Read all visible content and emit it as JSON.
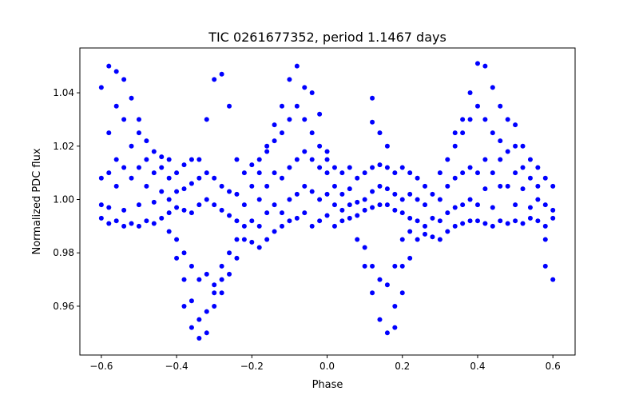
{
  "chart_data": {
    "type": "scatter",
    "title": "TIC 0261677352, period 1.1467 days",
    "xlabel": "Phase",
    "ylabel": "Normalized PDC flux",
    "xlim": [
      -0.657,
      0.659
    ],
    "ylim": [
      0.9417,
      1.0568
    ],
    "grid": false,
    "marker_color": "#0000ff",
    "x_ticks": [
      -0.6,
      -0.4,
      -0.2,
      0.0,
      0.2,
      0.4,
      0.6
    ],
    "x_tick_labels": [
      "−0.6",
      "−0.4",
      "−0.2",
      "0.0",
      "0.2",
      "0.4",
      "0.6"
    ],
    "y_ticks": [
      0.96,
      0.98,
      1.0,
      1.02,
      1.04
    ],
    "y_tick_labels": [
      "0.96",
      "0.98",
      "1.00",
      "1.02",
      "1.04"
    ],
    "columns": [
      {
        "x": -0.6,
        "y": [
          0.993,
          0.998,
          1.008,
          1.042
        ]
      },
      {
        "x": -0.58,
        "y": [
          0.991,
          0.997,
          1.01,
          1.025,
          1.05
        ]
      },
      {
        "x": -0.56,
        "y": [
          0.992,
          1.005,
          1.015,
          1.035,
          1.048
        ]
      },
      {
        "x": -0.54,
        "y": [
          0.99,
          0.996,
          1.012,
          1.03,
          1.045
        ]
      },
      {
        "x": -0.52,
        "y": [
          0.991,
          1.008,
          1.02,
          1.038
        ]
      },
      {
        "x": -0.5,
        "y": [
          0.99,
          0.998,
          1.012,
          1.025,
          1.03
        ]
      },
      {
        "x": -0.48,
        "y": [
          0.992,
          1.005,
          1.015,
          1.022
        ]
      },
      {
        "x": -0.46,
        "y": [
          0.991,
          0.999,
          1.01,
          1.018
        ]
      },
      {
        "x": -0.44,
        "y": [
          0.993,
          1.003,
          1.012,
          1.016
        ]
      },
      {
        "x": -0.42,
        "y": [
          0.995,
          1.0,
          1.008,
          1.015,
          0.988
        ]
      },
      {
        "x": -0.4,
        "y": [
          0.997,
          1.003,
          1.01,
          0.985,
          0.978
        ]
      },
      {
        "x": -0.38,
        "y": [
          0.996,
          1.004,
          1.013,
          0.98,
          0.97,
          0.96
        ]
      },
      {
        "x": -0.36,
        "y": [
          0.995,
          1.006,
          1.015,
          0.975,
          0.962,
          0.952
        ]
      },
      {
        "x": -0.34,
        "y": [
          0.998,
          1.008,
          1.015,
          0.97,
          0.955,
          0.948
        ]
      },
      {
        "x": -0.32,
        "y": [
          1.0,
          1.01,
          1.03,
          0.972,
          0.958,
          0.95
        ]
      },
      {
        "x": -0.3,
        "y": [
          0.998,
          1.008,
          1.045,
          0.968,
          0.96,
          0.965
        ]
      },
      {
        "x": -0.28,
        "y": [
          0.996,
          1.005,
          1.047,
          0.975,
          0.965,
          0.97
        ]
      },
      {
        "x": -0.26,
        "y": [
          0.994,
          1.003,
          1.035,
          0.98,
          0.972
        ]
      },
      {
        "x": -0.24,
        "y": [
          0.992,
          1.002,
          1.015,
          0.985,
          0.978
        ]
      },
      {
        "x": -0.22,
        "y": [
          0.99,
          0.998,
          1.01,
          0.985
        ]
      },
      {
        "x": -0.2,
        "y": [
          0.984,
          0.992,
          1.005,
          1.013
        ]
      },
      {
        "x": -0.18,
        "y": [
          0.982,
          0.99,
          1.0,
          1.015,
          1.01
        ]
      },
      {
        "x": -0.16,
        "y": [
          0.985,
          0.995,
          1.005,
          1.018,
          1.02
        ]
      },
      {
        "x": -0.14,
        "y": [
          0.988,
          0.998,
          1.01,
          1.022,
          1.028
        ]
      },
      {
        "x": -0.12,
        "y": [
          0.99,
          0.995,
          1.008,
          1.025,
          1.035
        ]
      },
      {
        "x": -0.1,
        "y": [
          0.992,
          1.0,
          1.012,
          1.03,
          1.045
        ]
      },
      {
        "x": -0.08,
        "y": [
          0.993,
          1.002,
          1.015,
          1.035,
          1.05
        ]
      },
      {
        "x": -0.06,
        "y": [
          0.995,
          1.005,
          1.018,
          1.03,
          1.042
        ]
      },
      {
        "x": -0.04,
        "y": [
          0.99,
          1.003,
          1.015,
          1.025,
          1.04
        ]
      },
      {
        "x": -0.02,
        "y": [
          0.992,
          1.0,
          1.012,
          1.02,
          1.032
        ]
      },
      {
        "x": 0.0,
        "y": [
          0.994,
          1.002,
          1.01,
          1.018,
          1.015
        ]
      },
      {
        "x": 0.02,
        "y": [
          0.99,
          0.998,
          1.005,
          1.012
        ]
      },
      {
        "x": 0.04,
        "y": [
          0.992,
          0.996,
          1.002,
          1.01
        ]
      },
      {
        "x": 0.06,
        "y": [
          0.993,
          0.998,
          1.004,
          1.012
        ]
      },
      {
        "x": 0.08,
        "y": [
          0.994,
          0.999,
          1.008,
          0.985
        ]
      },
      {
        "x": 0.1,
        "y": [
          0.996,
          1.0,
          1.01,
          0.982,
          0.975
        ]
      },
      {
        "x": 0.12,
        "y": [
          0.997,
          1.003,
          1.012,
          0.975,
          0.965,
          1.038,
          1.029
        ]
      },
      {
        "x": 0.14,
        "y": [
          0.998,
          1.005,
          1.013,
          0.97,
          0.955,
          1.025
        ]
      },
      {
        "x": 0.16,
        "y": [
          0.998,
          1.004,
          1.012,
          0.968,
          0.95,
          1.02
        ]
      },
      {
        "x": 0.18,
        "y": [
          0.996,
          1.002,
          1.01,
          0.96,
          0.952,
          0.975
        ]
      },
      {
        "x": 0.2,
        "y": [
          0.995,
          1.0,
          1.012,
          0.965,
          0.975,
          0.985
        ]
      },
      {
        "x": 0.22,
        "y": [
          0.993,
          1.002,
          1.01,
          0.978,
          0.988
        ]
      },
      {
        "x": 0.24,
        "y": [
          0.992,
          1.0,
          1.008,
          0.985
        ]
      },
      {
        "x": 0.26,
        "y": [
          0.99,
          0.998,
          1.005,
          0.987
        ]
      },
      {
        "x": 0.28,
        "y": [
          0.986,
          0.993,
          1.002
        ]
      },
      {
        "x": 0.3,
        "y": [
          0.985,
          0.992,
          1.0,
          1.01
        ]
      },
      {
        "x": 0.32,
        "y": [
          0.988,
          0.995,
          1.005,
          1.015
        ]
      },
      {
        "x": 0.34,
        "y": [
          0.99,
          0.997,
          1.008,
          1.02,
          1.025
        ]
      },
      {
        "x": 0.36,
        "y": [
          0.991,
          0.998,
          1.01,
          1.025,
          1.03
        ]
      },
      {
        "x": 0.38,
        "y": [
          0.992,
          1.0,
          1.012,
          1.03,
          1.04
        ]
      },
      {
        "x": 0.4,
        "y": [
          0.992,
          0.998,
          1.01,
          1.035,
          1.051
        ]
      },
      {
        "x": 0.42,
        "y": [
          0.991,
          1.004,
          1.015,
          1.03,
          1.05
        ]
      },
      {
        "x": 0.44,
        "y": [
          0.99,
          0.997,
          1.01,
          1.025,
          1.042
        ]
      },
      {
        "x": 0.46,
        "y": [
          0.992,
          1.005,
          1.015,
          1.022,
          1.035
        ]
      },
      {
        "x": 0.48,
        "y": [
          0.991,
          1.005,
          1.018,
          1.03
        ]
      },
      {
        "x": 0.5,
        "y": [
          0.992,
          0.998,
          1.01,
          1.02,
          1.028
        ]
      },
      {
        "x": 0.52,
        "y": [
          0.991,
          1.004,
          1.012,
          1.02
        ]
      },
      {
        "x": 0.54,
        "y": [
          0.993,
          0.997,
          1.008,
          1.015
        ]
      },
      {
        "x": 0.56,
        "y": [
          0.992,
          1.0,
          1.005,
          1.012
        ]
      },
      {
        "x": 0.58,
        "y": [
          0.99,
          0.998,
          1.008,
          0.985,
          0.975
        ]
      },
      {
        "x": 0.6,
        "y": [
          0.993,
          0.996,
          1.005,
          0.97
        ]
      }
    ]
  }
}
